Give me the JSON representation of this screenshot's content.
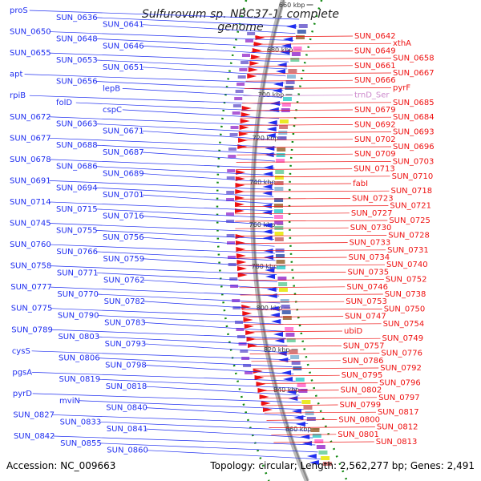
{
  "title": "Sulfurovum sp. NBC37-1, complete genome",
  "footer": {
    "accession": "Accession: NC_009663",
    "summary": "Topology: circular; Length: 2,562,277 bp; Genes: 2,491"
  },
  "colors": {
    "forward": "#1f2ef0",
    "reverse": "#ee1111",
    "rna": "#cc88cc",
    "backbone": "#888888",
    "ticks": "#118811"
  },
  "scale_labels": [
    "660 kbp",
    "680 kbp",
    "700 kbp",
    "720 kbp",
    "740 kbp",
    "760 kbp",
    "780 kbp",
    "800 kbp",
    "820 kbp",
    "840 kbp",
    "860 kbp"
  ],
  "left_labels": [
    "proS",
    "SUN_0636",
    "SUN_0641",
    "SUN_0650",
    "SUN_0648",
    "SUN_0646",
    "SUN_0655",
    "SUN_0653",
    "SUN_0651",
    "apt",
    "SUN_0656",
    "lepB",
    "rpiB",
    "folD",
    "cspC",
    "SUN_0672",
    "SUN_0663",
    "SUN_0671",
    "SUN_0677",
    "SUN_0688",
    "SUN_0687",
    "SUN_0678",
    "SUN_0686",
    "SUN_0689",
    "SUN_0691",
    "SUN_0694",
    "SUN_0701",
    "SUN_0714",
    "SUN_0715",
    "SUN_0716",
    "SUN_0745",
    "SUN_0755",
    "SUN_0756",
    "SUN_0760",
    "SUN_0766",
    "SUN_0759",
    "SUN_0758",
    "SUN_0771",
    "SUN_0762",
    "SUN_0777",
    "SUN_0770",
    "SUN_0782",
    "SUN_0775",
    "SUN_0790",
    "SUN_0783",
    "SUN_0789",
    "SUN_0803",
    "SUN_0793",
    "cysS",
    "SUN_0806",
    "SUN_0798",
    "pgsA",
    "SUN_0819",
    "SUN_0818",
    "pyrD",
    "mviN",
    "SUN_0840",
    "SUN_0827",
    "SUN_0833",
    "SUN_0841",
    "SUN_0842",
    "SUN_0855",
    "SUN_0860"
  ],
  "right_labels": [
    "SUN_0642",
    "xthA",
    "SUN_0649",
    "SUN_0658",
    "SUN_0661",
    "SUN_0667",
    "SUN_0666",
    "pyrF",
    "trnD_Ser",
    "SUN_0685",
    "SUN_0679",
    "SUN_0684",
    "SUN_0692",
    "SUN_0693",
    "SUN_0702",
    "SUN_0696",
    "SUN_0709",
    "SUN_0703",
    "SUN_0713",
    "SUN_0710",
    "fabI",
    "SUN_0718",
    "SUN_0723",
    "SUN_0721",
    "SUN_0727",
    "SUN_0725",
    "SUN_0730",
    "SUN_0728",
    "SUN_0733",
    "SUN_0731",
    "SUN_0734",
    "SUN_0740",
    "SUN_0735",
    "SUN_0752",
    "SUN_0746",
    "SUN_0738",
    "SUN_0753",
    "SUN_0750",
    "SUN_0747",
    "SUN_0754",
    "ubiD",
    "SUN_0749",
    "SUN_0757",
    "SUN_0776",
    "SUN_0786",
    "SUN_0792",
    "SUN_0795",
    "SUN_0796",
    "SUN_0802",
    "SUN_0797",
    "SUN_0799",
    "SUN_0817",
    "SUN_0800",
    "SUN_0812",
    "SUN_0801",
    "SUN_0813"
  ]
}
